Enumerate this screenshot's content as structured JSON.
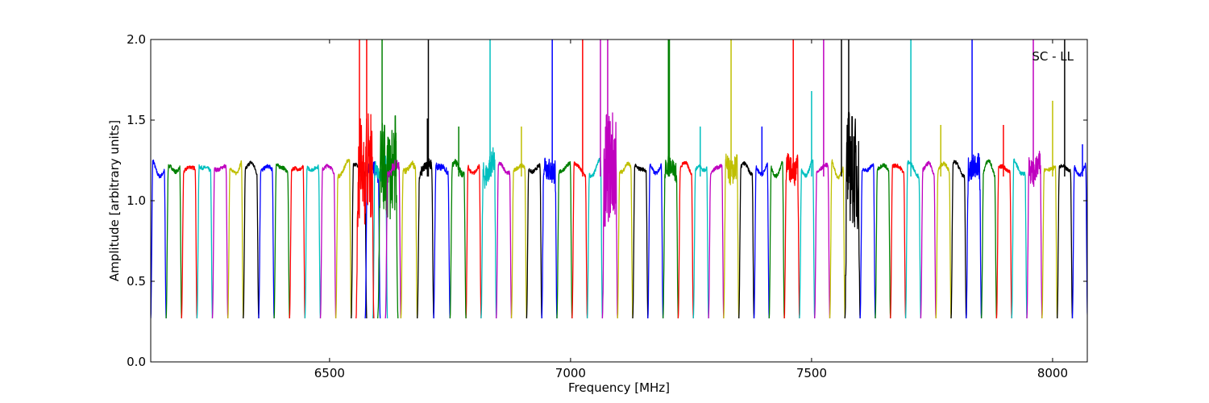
{
  "chart_data": {
    "type": "line",
    "title": "",
    "annotation": "SC - LL",
    "xlabel": "Frequency [MHz]",
    "ylabel": "Amplitude [arbitrary units]",
    "xlim": [
      6129,
      8072
    ],
    "ylim": [
      0.0,
      2.0
    ],
    "xticks": [
      6500,
      7000,
      7500,
      8000
    ],
    "xtick_labels": [
      "6500",
      "7000",
      "7500",
      "8000"
    ],
    "yticks": [
      0.0,
      0.5,
      1.0,
      1.5,
      2.0
    ],
    "ytick_labels": [
      "0.0",
      "0.5",
      "1.0",
      "1.5",
      "2.0"
    ],
    "grid": false,
    "color_cycle": {
      "b": "#0000ff",
      "g": "#008000",
      "r": "#ff0000",
      "c": "#00bfbf",
      "m": "#bf00bf",
      "y": "#bfbf00",
      "k": "#000000"
    },
    "passband_level": 1.2,
    "band_edge_floor": 0.27,
    "channel_groups": [
      {
        "start": 6129,
        "width": 32,
        "colors": "bgrcmykbgrcmyk"
      },
      {
        "start": 6783,
        "width": 31.45,
        "colors": "rcmykbgrcmykbgrcmykbgrcmykbgrcmykbgrcmykb"
      }
    ],
    "irregular_channels": [
      {
        "start": 6574,
        "end": 6605,
        "color": "b",
        "noise": 0.05
      },
      {
        "start": 6590,
        "end": 6620,
        "color": "c",
        "noise": 0.05
      },
      {
        "start": 6600,
        "end": 6642,
        "color": "g",
        "noise": 0.3
      },
      {
        "start": 6616,
        "end": 6648,
        "color": "m",
        "noise": 0.03
      },
      {
        "start": 6648,
        "end": 6682,
        "color": "y",
        "noise": 0.02
      },
      {
        "start": 6682,
        "end": 6716,
        "color": "k",
        "noise": 0.03
      },
      {
        "start": 6716,
        "end": 6750,
        "color": "b",
        "noise": 0.02
      },
      {
        "start": 6750,
        "end": 6783,
        "color": "g",
        "noise": 0.02
      },
      {
        "start": 6555,
        "end": 6592,
        "color": "r",
        "noise": 0.35
      }
    ],
    "noisy_channels": [
      {
        "f": 6833,
        "noise": 0.08
      },
      {
        "f": 6962,
        "noise": 0.08
      },
      {
        "f": 7075,
        "noise": 0.35
      },
      {
        "f": 7203,
        "noise": 0.06
      },
      {
        "f": 7333,
        "noise": 0.08
      },
      {
        "f": 7462,
        "noise": 0.08
      },
      {
        "f": 7570,
        "noise": 0.35
      },
      {
        "f": 7833,
        "noise": 0.08
      },
      {
        "f": 7960,
        "noise": 0.08
      }
    ],
    "spikes": [
      {
        "f": 6562,
        "amp": 2.0,
        "color": "r"
      },
      {
        "f": 6577,
        "amp": 2.0,
        "color": "r"
      },
      {
        "f": 6609,
        "amp": 2.0,
        "color": "g"
      },
      {
        "f": 6638,
        "amp": 1.37,
        "color": "g"
      },
      {
        "f": 6703,
        "amp": 1.51,
        "color": "k"
      },
      {
        "f": 6705,
        "amp": 2.0,
        "color": "k"
      },
      {
        "f": 6768,
        "amp": 1.46,
        "color": "g"
      },
      {
        "f": 6833,
        "amp": 2.0,
        "color": "c"
      },
      {
        "f": 6898,
        "amp": 1.46,
        "color": "y"
      },
      {
        "f": 6962,
        "amp": 2.0,
        "color": "b"
      },
      {
        "f": 7025,
        "amp": 2.0,
        "color": "r"
      },
      {
        "f": 7062,
        "amp": 2.0,
        "color": "m"
      },
      {
        "f": 7077,
        "amp": 2.0,
        "color": "m"
      },
      {
        "f": 7203,
        "amp": 2.0,
        "color": "g"
      },
      {
        "f": 7205,
        "amp": 2.0,
        "color": "g"
      },
      {
        "f": 7269,
        "amp": 1.46,
        "color": "c"
      },
      {
        "f": 7333,
        "amp": 2.0,
        "color": "y"
      },
      {
        "f": 7397,
        "amp": 1.46,
        "color": "b"
      },
      {
        "f": 7462,
        "amp": 2.0,
        "color": "r"
      },
      {
        "f": 7500,
        "amp": 1.68,
        "color": "c"
      },
      {
        "f": 7525,
        "amp": 2.0,
        "color": "m"
      },
      {
        "f": 7562,
        "amp": 2.0,
        "color": "k"
      },
      {
        "f": 7577,
        "amp": 2.0,
        "color": "k"
      },
      {
        "f": 7706,
        "amp": 2.0,
        "color": "c"
      },
      {
        "f": 7768,
        "amp": 1.47,
        "color": "y"
      },
      {
        "f": 7833,
        "amp": 2.0,
        "color": "b"
      },
      {
        "f": 7898,
        "amp": 1.47,
        "color": "r"
      },
      {
        "f": 7960,
        "amp": 2.0,
        "color": "m"
      },
      {
        "f": 8000,
        "amp": 1.62,
        "color": "y"
      },
      {
        "f": 8025,
        "amp": 2.0,
        "color": "k"
      },
      {
        "f": 8062,
        "amp": 1.35,
        "color": "b"
      }
    ]
  }
}
